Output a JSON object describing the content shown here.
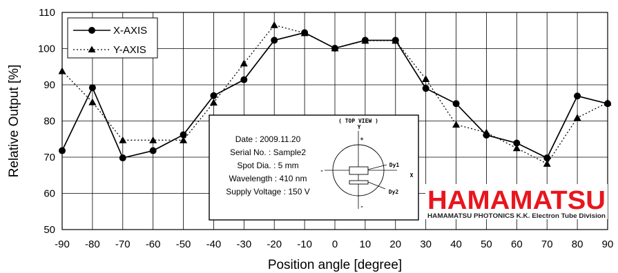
{
  "chart_data": {
    "type": "line",
    "xlabel": "Position angle [degree]",
    "ylabel": "Relative Output [%]",
    "x": [
      -90,
      -80,
      -70,
      -60,
      -50,
      -40,
      -30,
      -20,
      -10,
      0,
      10,
      20,
      30,
      40,
      50,
      60,
      70,
      80,
      90
    ],
    "xlim": [
      -90,
      90
    ],
    "ylim": [
      50,
      110
    ],
    "yticks": [
      50,
      60,
      70,
      80,
      90,
      100,
      110
    ],
    "grid": true,
    "legend_position": "top-left",
    "series": [
      {
        "name": "X-AXIS",
        "marker": "circle",
        "line": "solid",
        "values": [
          71.8,
          89.2,
          69.8,
          71.8,
          76.2,
          87.0,
          91.4,
          102.3,
          104.4,
          100.1,
          102.3,
          102.3,
          89.0,
          84.8,
          76.1,
          73.9,
          69.8,
          86.9,
          84.8
        ]
      },
      {
        "name": "Y-AXIS",
        "marker": "triangle",
        "line": "dotted",
        "values": [
          93.8,
          85.2,
          74.7,
          74.7,
          74.7,
          85.1,
          95.9,
          106.5,
          104.3,
          100.1,
          102.2,
          102.2,
          91.6,
          79.0,
          76.8,
          72.5,
          68.2,
          80.9,
          85.1
        ]
      }
    ]
  },
  "info_box": {
    "lines": [
      "Date : 2009.11.20",
      "Serial No. : Sample2",
      "Spot Dia. : 5 mm",
      "Wavelength : 410 nm",
      "Supply Voltage : 150 V"
    ],
    "top_view_label": "( TOP VIEW )",
    "diagram_labels": {
      "y_axis": "Y",
      "x_axis": "X",
      "plus_top": "+",
      "minus_bottom": "-",
      "minus_left": "-",
      "dy1": "Dy1",
      "dy2": "Dy2"
    }
  },
  "logo": {
    "name": "HAMAMATSU",
    "subtitle": "HAMAMATSU PHOTONICS K.K. Electron Tube Division",
    "color": "#e8161d"
  }
}
